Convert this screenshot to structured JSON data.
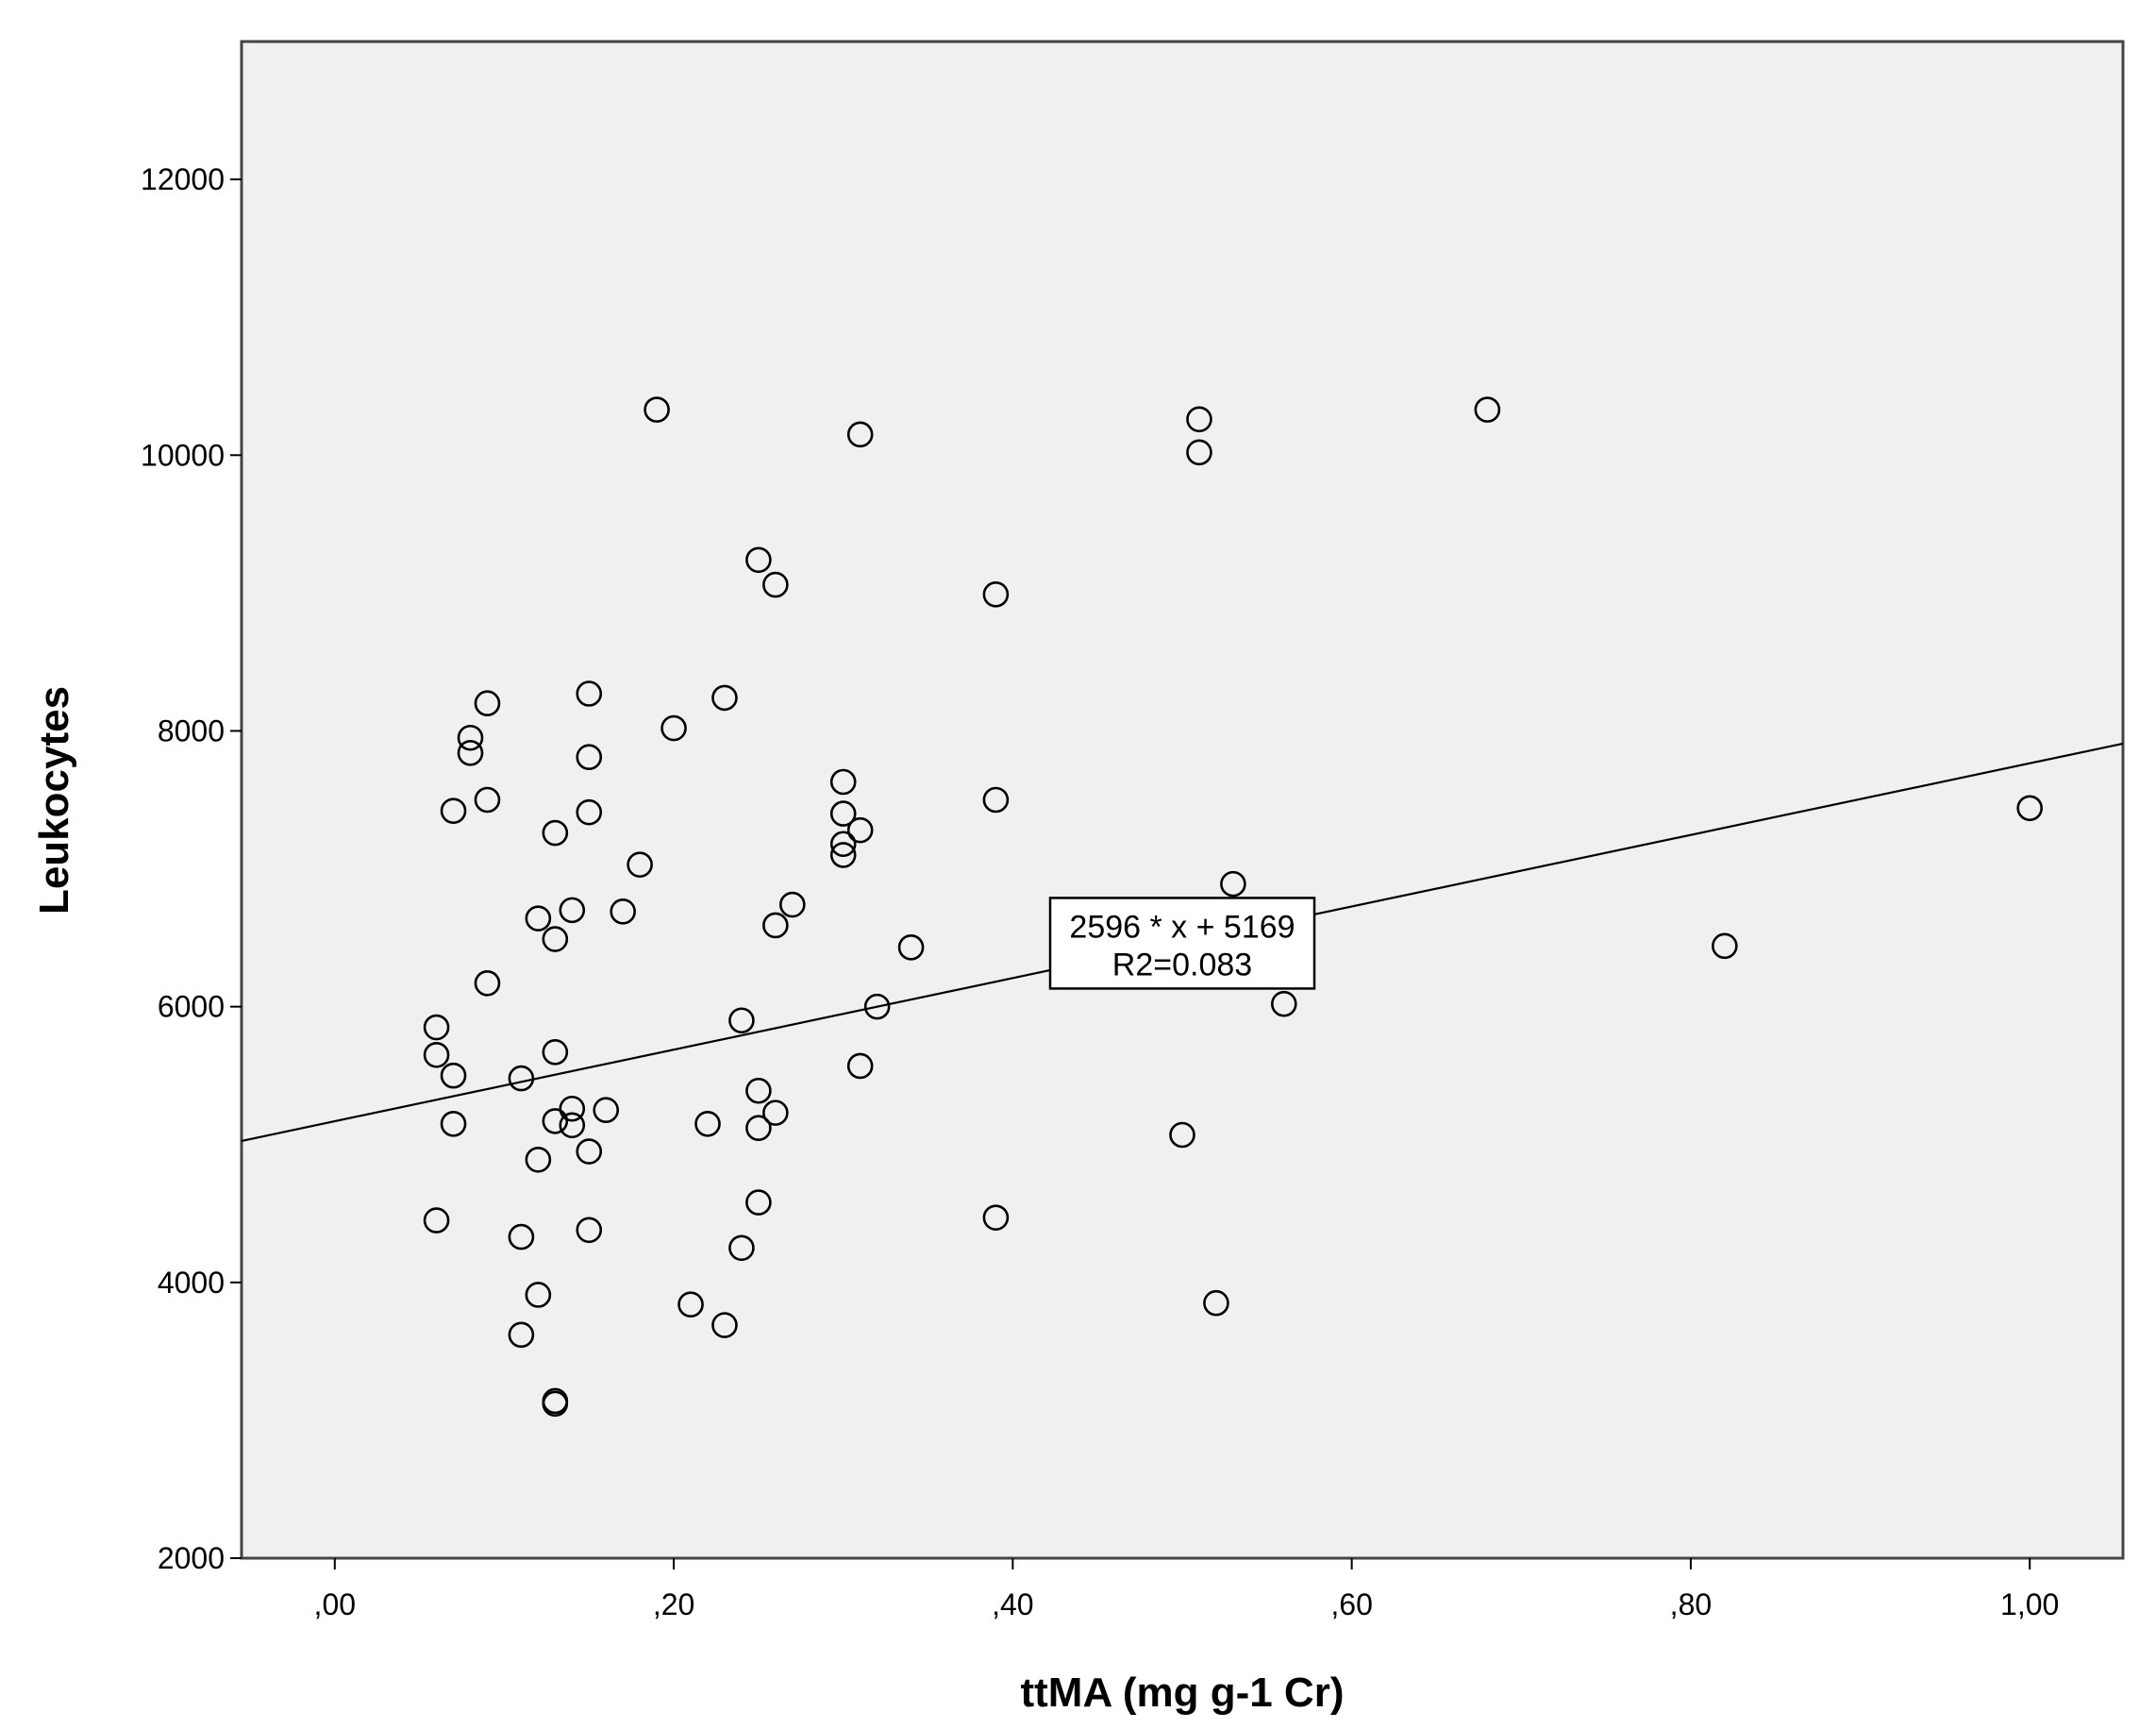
{
  "chart_data": {
    "type": "scatter",
    "xlabel": "ttMA (mg g-1 Cr)",
    "ylabel": "Leukocytes",
    "xlim": [
      -0.055,
      1.055
    ],
    "ylim": [
      2000,
      13000
    ],
    "x_ticks": [
      0,
      0.2,
      0.4,
      0.6,
      0.8,
      1.0
    ],
    "x_tick_labels": [
      ",00",
      ",20",
      ",40",
      ",60",
      ",80",
      "1,00"
    ],
    "y_ticks": [
      2000,
      4000,
      6000,
      8000,
      10000,
      12000
    ],
    "y_tick_labels": [
      "2000",
      "4000",
      "6000",
      "8000",
      "10000",
      "12000"
    ],
    "grid": false,
    "background": "#f0f0f0",
    "marker": "open-circle",
    "points": [
      [
        0.06,
        5850
      ],
      [
        0.06,
        5650
      ],
      [
        0.06,
        4450
      ],
      [
        0.07,
        7420
      ],
      [
        0.07,
        5500
      ],
      [
        0.07,
        5150
      ],
      [
        0.08,
        7950
      ],
      [
        0.08,
        7840
      ],
      [
        0.09,
        8200
      ],
      [
        0.09,
        7500
      ],
      [
        0.09,
        6170
      ],
      [
        0.11,
        5480
      ],
      [
        0.11,
        4330
      ],
      [
        0.11,
        3620
      ],
      [
        0.12,
        6640
      ],
      [
        0.12,
        4890
      ],
      [
        0.12,
        3910
      ],
      [
        0.13,
        7260
      ],
      [
        0.13,
        6490
      ],
      [
        0.13,
        5670
      ],
      [
        0.13,
        5170
      ],
      [
        0.13,
        3140
      ],
      [
        0.13,
        3120
      ],
      [
        0.14,
        6700
      ],
      [
        0.14,
        5260
      ],
      [
        0.14,
        5140
      ],
      [
        0.15,
        8270
      ],
      [
        0.15,
        7810
      ],
      [
        0.15,
        7410
      ],
      [
        0.15,
        4950
      ],
      [
        0.15,
        4380
      ],
      [
        0.16,
        5250
      ],
      [
        0.17,
        6690
      ],
      [
        0.18,
        7030
      ],
      [
        0.19,
        10330
      ],
      [
        0.2,
        8020
      ],
      [
        0.21,
        3840
      ],
      [
        0.22,
        5150
      ],
      [
        0.23,
        8240
      ],
      [
        0.23,
        3690
      ],
      [
        0.24,
        5900
      ],
      [
        0.24,
        4250
      ],
      [
        0.25,
        9240
      ],
      [
        0.25,
        5390
      ],
      [
        0.25,
        5120
      ],
      [
        0.25,
        4580
      ],
      [
        0.26,
        9060
      ],
      [
        0.26,
        6590
      ],
      [
        0.26,
        5230
      ],
      [
        0.27,
        6740
      ],
      [
        0.3,
        7630
      ],
      [
        0.3,
        7400
      ],
      [
        0.3,
        7180
      ],
      [
        0.3,
        7100
      ],
      [
        0.31,
        10150
      ],
      [
        0.31,
        7280
      ],
      [
        0.31,
        5570
      ],
      [
        0.32,
        6000
      ],
      [
        0.34,
        6430
      ],
      [
        0.39,
        8990
      ],
      [
        0.39,
        7500
      ],
      [
        0.39,
        4470
      ],
      [
        0.5,
        5070
      ],
      [
        0.51,
        10260
      ],
      [
        0.51,
        10020
      ],
      [
        0.52,
        3850
      ],
      [
        0.53,
        6890
      ],
      [
        0.56,
        6020
      ],
      [
        0.68,
        10330
      ],
      [
        0.82,
        6440
      ],
      [
        1.0,
        7440
      ]
    ],
    "fit_line": {
      "slope": 2596,
      "intercept": 5169
    },
    "annotation": {
      "line1": "2596 * x + 5169",
      "line2": "R2=0.083",
      "x": 0.5,
      "y": 6460
    }
  }
}
